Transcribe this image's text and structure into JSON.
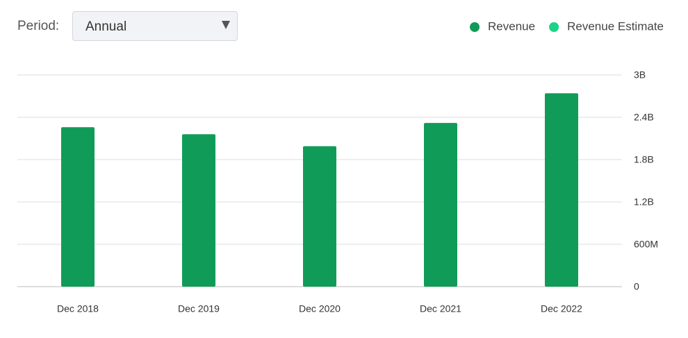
{
  "controls": {
    "period_label": "Period:",
    "period_value": "Annual"
  },
  "chart_data": {
    "type": "bar",
    "categories": [
      "Dec 2018",
      "Dec 2019",
      "Dec 2020",
      "Dec 2021",
      "Dec 2022"
    ],
    "series": [
      {
        "name": "Revenue",
        "color": "#109c58",
        "values": [
          2260000000,
          2160000000,
          1990000000,
          2320000000,
          2740000000
        ]
      },
      {
        "name": "Revenue Estimate",
        "color": "#1bd387",
        "values": [
          null,
          null,
          null,
          null,
          null
        ]
      }
    ],
    "ylim": [
      0,
      3000000000
    ],
    "yticks": [
      0,
      {
        "value": 600000000,
        "label": "600M"
      },
      {
        "value": 1200000000,
        "label": "1.2B"
      },
      {
        "value": 1800000000,
        "label": "1.8B"
      },
      {
        "value": 2400000000,
        "label": "2.4B"
      },
      {
        "value": 3000000000,
        "label": "3B"
      }
    ],
    "grid": true,
    "legend": "top-right"
  }
}
